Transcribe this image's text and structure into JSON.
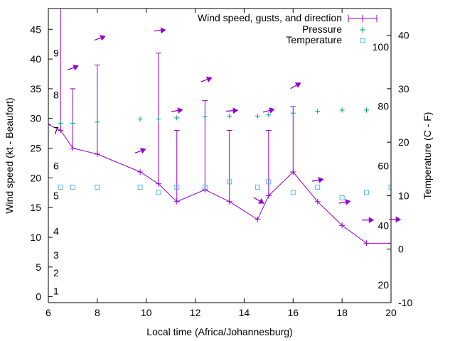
{
  "chart_data": {
    "type": "line",
    "xlabel": "Local time (Africa/Johannesburg)",
    "ylabel_left": "Wind speed (kt - Beaufort)",
    "ylabel_right": "Temperature (C - F)",
    "xlim": [
      6,
      20
    ],
    "ylim_left": [
      -1,
      48.5
    ],
    "ylim_right": [
      -10,
      45
    ],
    "x_ticks": [
      6,
      8,
      10,
      12,
      14,
      16,
      18,
      20
    ],
    "y_left_ticks": [
      0,
      5,
      10,
      15,
      20,
      25,
      30,
      35,
      40,
      45
    ],
    "y_right_ticks": [
      -10,
      0,
      10,
      20,
      30,
      40
    ],
    "fahrenheit_labels": [
      {
        "label": "20",
        "celsius": -6.7
      },
      {
        "label": "40",
        "celsius": 4.4
      },
      {
        "label": "60",
        "celsius": 15.6
      },
      {
        "label": "80",
        "celsius": 26.7
      },
      {
        "label": "100",
        "celsius": 37.8
      }
    ],
    "beaufort_labels": [
      {
        "label": "1",
        "kt": 1
      },
      {
        "label": "2",
        "kt": 4
      },
      {
        "label": "3",
        "kt": 7
      },
      {
        "label": "4",
        "kt": 11
      },
      {
        "label": "5",
        "kt": 17
      },
      {
        "label": "6",
        "kt": 22
      },
      {
        "label": "7",
        "kt": 28
      },
      {
        "label": "8",
        "kt": 34
      },
      {
        "label": "9",
        "kt": 41
      }
    ],
    "series": [
      {
        "name": "Wind speed, gusts, and direction",
        "color": "#9400d3",
        "x": [
          6.0,
          6.5,
          7.0,
          8.0,
          9.75,
          10.5,
          11.25,
          12.4,
          13.4,
          14.55,
          15.0,
          16.0,
          17.0,
          18.0,
          19.0,
          20.0
        ],
        "y": [
          29,
          28,
          25,
          24,
          21,
          19,
          16,
          18,
          16,
          13,
          17,
          21,
          16,
          12,
          9,
          9
        ],
        "gusts": [
          null,
          50,
          35,
          39,
          null,
          41,
          28,
          33,
          28,
          null,
          28,
          32,
          null,
          null,
          null,
          null
        ]
      },
      {
        "name": "Pressure",
        "color": "#009e73",
        "x": [
          6.5,
          7.0,
          8.0,
          9.75,
          10.5,
          11.25,
          12.4,
          13.4,
          14.55,
          15.0,
          16.0,
          17.0,
          18.0,
          19.0
        ],
        "y": [
          29.2,
          29.2,
          29.4,
          29.9,
          29.9,
          30.1,
          30.3,
          30.4,
          30.4,
          30.6,
          30.9,
          31.2,
          31.4,
          31.4
        ]
      },
      {
        "name": "Temperature",
        "color": "#56b4e9",
        "x": [
          6.5,
          7.0,
          8.0,
          9.75,
          10.5,
          11.25,
          12.4,
          13.4,
          14.55,
          15.0,
          16.0,
          17.0,
          18.0,
          19.0,
          20.0
        ],
        "y": [
          11.6,
          11.6,
          11.6,
          11.6,
          10.6,
          11.6,
          11.6,
          12.6,
          11.6,
          12.6,
          10.6,
          11.6,
          9.6,
          10.6,
          11.6
        ]
      }
    ],
    "wind_arrows": [
      {
        "x": 7.0,
        "kt": 38.5,
        "angle": -20
      },
      {
        "x": 8.1,
        "kt": 43.5,
        "angle": -20
      },
      {
        "x": 9.75,
        "kt": 24.5,
        "angle": -20
      },
      {
        "x": 10.55,
        "kt": 44.8,
        "angle": -5
      },
      {
        "x": 11.25,
        "kt": 31.3,
        "angle": -10
      },
      {
        "x": 12.45,
        "kt": 36.5,
        "angle": -20
      },
      {
        "x": 13.5,
        "kt": 31.3,
        "angle": -5
      },
      {
        "x": 14.6,
        "kt": 16.2,
        "angle": 30
      },
      {
        "x": 15.0,
        "kt": 31.3,
        "angle": -15
      },
      {
        "x": 16.1,
        "kt": 35.5,
        "angle": -30
      },
      {
        "x": 17.0,
        "kt": 19.6,
        "angle": -10
      },
      {
        "x": 18.1,
        "kt": 15.9,
        "angle": -10
      },
      {
        "x": 19.05,
        "kt": 12.9,
        "angle": 0
      },
      {
        "x": 20.15,
        "kt": 13.0,
        "angle": 0
      }
    ],
    "legend_position": "top-right",
    "grid": false
  }
}
